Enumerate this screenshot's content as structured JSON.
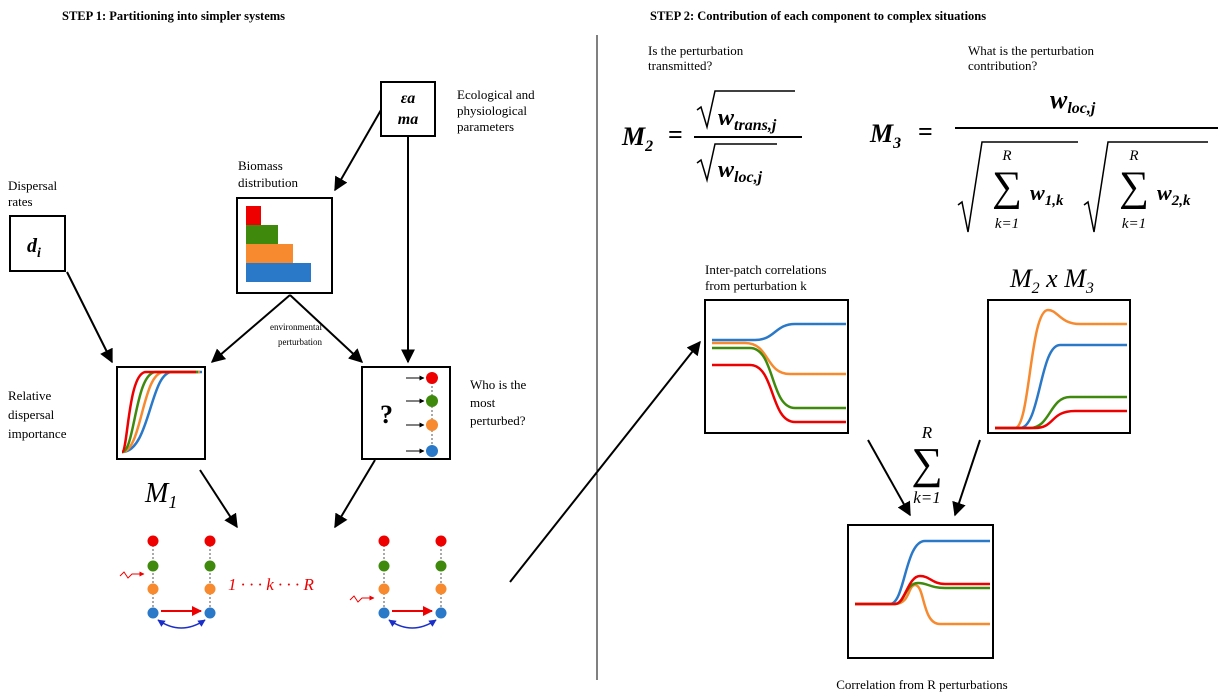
{
  "step1": {
    "title": "STEP 1: Partitioning into simpler systems",
    "dispersal": {
      "label": [
        "Dispersal",
        "rates"
      ],
      "symbol": "d",
      "symbol_sub": "i"
    },
    "parameters": {
      "symbols": [
        "εa",
        "ma"
      ],
      "label": [
        "Ecological and",
        "physiological",
        "parameters"
      ]
    },
    "biomass": {
      "label": [
        "Biomass",
        "distribution"
      ]
    },
    "perturbation": {
      "label": [
        "environmental",
        "perturbation"
      ]
    },
    "relative": {
      "label": [
        "Relative",
        "dispersal",
        "importance"
      ],
      "symbol": "M",
      "symbol_sub": "1"
    },
    "perturbed": {
      "label": [
        "Who is the",
        "most",
        "perturbed?"
      ],
      "symbol": "?"
    },
    "sequence": "1 · · · k · · · R"
  },
  "step2": {
    "title": "STEP 2: Contribution of each component to complex situations",
    "m2": {
      "question": [
        "Is the perturbation",
        "transmitted?"
      ],
      "lhs": "M",
      "lhs_sub": "2",
      "equals": "=",
      "numerator": "w",
      "numerator_sub": "trans,j",
      "denominator": "w",
      "denominator_sub": "loc,j"
    },
    "m3": {
      "question": [
        "What is the perturbation",
        "contribution?"
      ],
      "lhs": "M",
      "lhs_sub": "3",
      "equals": "=",
      "numerator": "w",
      "numerator_sub": "loc,j",
      "sum_top": "R",
      "sum_symbol": "∑",
      "sum_bottom": "k=1",
      "term1": "w",
      "term1_sub": "1,k",
      "term2": "w",
      "term2_sub": "2,k"
    },
    "panel1": {
      "label": [
        "Inter-patch correlations",
        "from perturbation k"
      ]
    },
    "panel2": {
      "label": "M",
      "label_sub1": "2",
      "times": " x M",
      "label_sub2": "3"
    },
    "sum": {
      "top": "R",
      "symbol": "∑",
      "bottom": "k=1"
    },
    "panel3": {
      "label": "Correlation from R perturbations"
    }
  }
}
